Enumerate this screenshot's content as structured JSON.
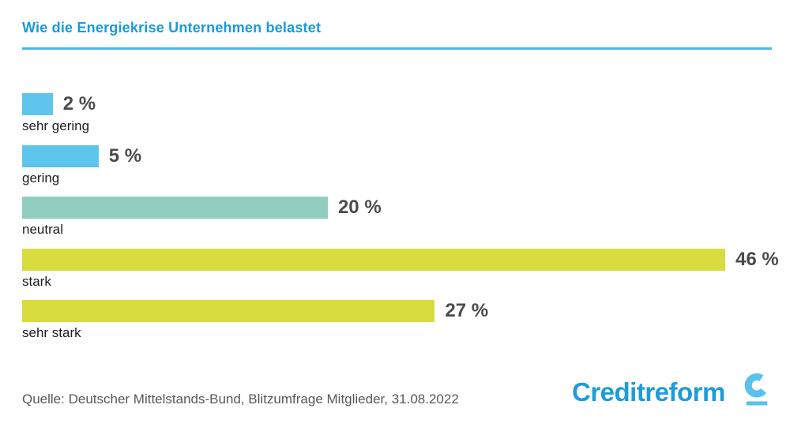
{
  "header": {
    "title": "Wie die Energiekrise Unternehmen belastet",
    "accent_color": "#1a9ad6",
    "rule_color": "#4db6e5"
  },
  "chart_data": {
    "type": "bar",
    "orientation": "horizontal",
    "title": "Wie die Energiekrise Unternehmen belastet",
    "categories": [
      "sehr gering",
      "gering",
      "neutral",
      "stark",
      "sehr stark"
    ],
    "values": [
      2,
      5,
      20,
      46,
      27
    ],
    "value_labels": [
      "2 %",
      "5 %",
      "20 %",
      "46 %",
      "27 %"
    ],
    "bar_colors": [
      "#5ec5ec",
      "#5ec5ec",
      "#92cec0",
      "#d9dc3e",
      "#d9dc3e"
    ],
    "xlabel": "",
    "ylabel": "",
    "xlim": [
      0,
      46
    ],
    "grid": false,
    "legend": false,
    "value_label_color": "#4b4b4b",
    "category_label_color": "#1c1c1c"
  },
  "footer": {
    "source": "Quelle: Deutscher Mittelstands-Bund, Blitzumfrage Mitglieder, 31.08.2022",
    "logo_text": "Creditreform",
    "logo_color": "#1e9cd8",
    "logo_icon_color": "#58c2ea"
  }
}
